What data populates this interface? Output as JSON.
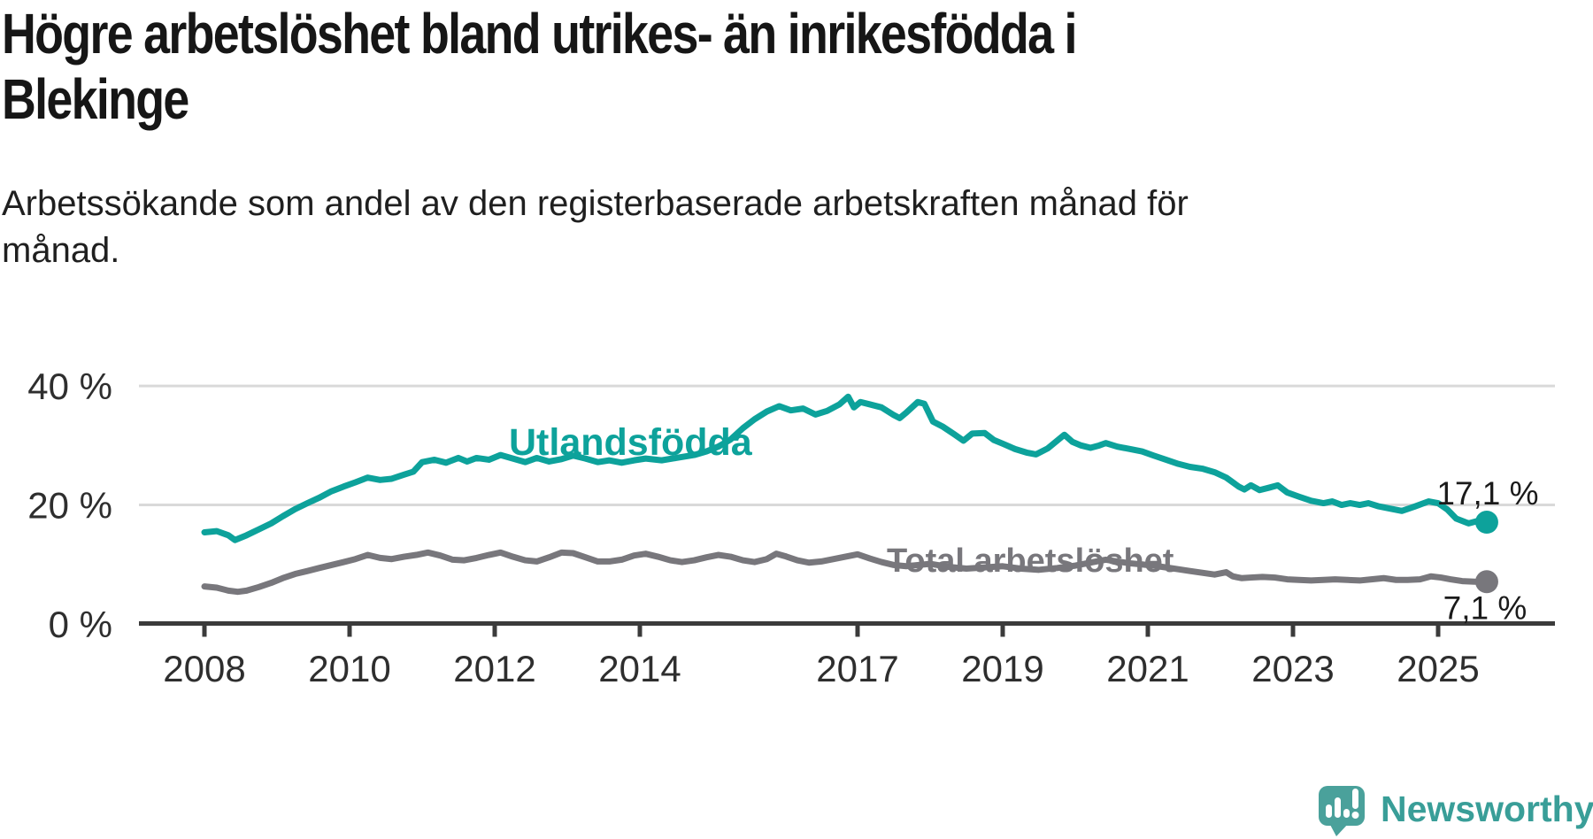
{
  "title": "Högre arbetslöshet bland utrikes- än inrikesfödda i Blekinge",
  "subtitle": "Arbetssökande som andel av den registerbaserade arbetskraften månad för månad.",
  "chart_data": {
    "type": "line",
    "title": "Högre arbetslöshet bland utrikes- än inrikesfödda i Blekinge",
    "xlabel": "",
    "ylabel": "",
    "unit": "%",
    "grid": "horizontal",
    "legend_position": "inline-annotations",
    "x_axis": {
      "range": [
        2008,
        2026
      ],
      "ticks": [
        2008,
        2010,
        2012,
        2014,
        2017,
        2019,
        2021,
        2023,
        2025
      ]
    },
    "y_axis": {
      "range": [
        0,
        42
      ],
      "ticks": [
        {
          "value": 0,
          "label": "0 %"
        },
        {
          "value": 20,
          "label": "20 %"
        },
        {
          "value": 40,
          "label": "40 %"
        }
      ]
    },
    "series": [
      {
        "name": "Utlandsfödda",
        "color": "#0da29b",
        "end_label": "17,1 %",
        "end_value": 17.1,
        "points": [
          [
            2008.0,
            15.4
          ],
          [
            2008.17,
            15.6
          ],
          [
            2008.33,
            14.9
          ],
          [
            2008.42,
            14.1
          ],
          [
            2008.58,
            14.9
          ],
          [
            2008.75,
            15.9
          ],
          [
            2008.92,
            16.9
          ],
          [
            2009.08,
            18.1
          ],
          [
            2009.25,
            19.3
          ],
          [
            2009.42,
            20.3
          ],
          [
            2009.58,
            21.2
          ],
          [
            2009.75,
            22.3
          ],
          [
            2009.92,
            23.1
          ],
          [
            2010.08,
            23.8
          ],
          [
            2010.25,
            24.6
          ],
          [
            2010.42,
            24.2
          ],
          [
            2010.58,
            24.4
          ],
          [
            2010.75,
            25.1
          ],
          [
            2010.88,
            25.6
          ],
          [
            2011.0,
            27.2
          ],
          [
            2011.17,
            27.6
          ],
          [
            2011.33,
            27.1
          ],
          [
            2011.5,
            27.9
          ],
          [
            2011.62,
            27.3
          ],
          [
            2011.75,
            27.9
          ],
          [
            2011.92,
            27.6
          ],
          [
            2012.08,
            28.4
          ],
          [
            2012.25,
            27.8
          ],
          [
            2012.42,
            27.2
          ],
          [
            2012.58,
            27.9
          ],
          [
            2012.75,
            27.3
          ],
          [
            2012.92,
            27.7
          ],
          [
            2013.08,
            28.3
          ],
          [
            2013.25,
            27.8
          ],
          [
            2013.42,
            27.2
          ],
          [
            2013.58,
            27.5
          ],
          [
            2013.75,
            27.1
          ],
          [
            2013.92,
            27.5
          ],
          [
            2014.08,
            27.8
          ],
          [
            2014.3,
            27.5
          ],
          [
            2014.5,
            27.9
          ],
          [
            2014.75,
            28.4
          ],
          [
            2014.92,
            29.0
          ],
          [
            2015.08,
            29.8
          ],
          [
            2015.25,
            31.0
          ],
          [
            2015.42,
            32.9
          ],
          [
            2015.58,
            34.4
          ],
          [
            2015.75,
            35.7
          ],
          [
            2015.92,
            36.6
          ],
          [
            2016.08,
            35.9
          ],
          [
            2016.25,
            36.2
          ],
          [
            2016.42,
            35.2
          ],
          [
            2016.58,
            35.8
          ],
          [
            2016.75,
            36.9
          ],
          [
            2016.87,
            38.2
          ],
          [
            2016.95,
            36.4
          ],
          [
            2017.04,
            37.3
          ],
          [
            2017.17,
            36.9
          ],
          [
            2017.33,
            36.4
          ],
          [
            2017.5,
            35.1
          ],
          [
            2017.58,
            34.6
          ],
          [
            2017.67,
            35.5
          ],
          [
            2017.83,
            37.3
          ],
          [
            2017.92,
            37.0
          ],
          [
            2018.04,
            34.0
          ],
          [
            2018.17,
            33.2
          ],
          [
            2018.33,
            31.9
          ],
          [
            2018.46,
            30.8
          ],
          [
            2018.58,
            32.0
          ],
          [
            2018.75,
            32.1
          ],
          [
            2018.88,
            30.9
          ],
          [
            2019.0,
            30.3
          ],
          [
            2019.17,
            29.4
          ],
          [
            2019.33,
            28.8
          ],
          [
            2019.46,
            28.5
          ],
          [
            2019.62,
            29.5
          ],
          [
            2019.75,
            30.8
          ],
          [
            2019.85,
            31.8
          ],
          [
            2019.96,
            30.6
          ],
          [
            2020.08,
            30.0
          ],
          [
            2020.21,
            29.6
          ],
          [
            2020.33,
            30.0
          ],
          [
            2020.42,
            30.4
          ],
          [
            2020.58,
            29.8
          ],
          [
            2020.75,
            29.4
          ],
          [
            2020.92,
            29.0
          ],
          [
            2021.08,
            28.3
          ],
          [
            2021.25,
            27.6
          ],
          [
            2021.42,
            26.9
          ],
          [
            2021.58,
            26.4
          ],
          [
            2021.75,
            26.1
          ],
          [
            2021.92,
            25.5
          ],
          [
            2022.08,
            24.6
          ],
          [
            2022.25,
            23.1
          ],
          [
            2022.33,
            22.6
          ],
          [
            2022.42,
            23.3
          ],
          [
            2022.54,
            22.5
          ],
          [
            2022.67,
            22.9
          ],
          [
            2022.79,
            23.3
          ],
          [
            2022.92,
            22.1
          ],
          [
            2023.08,
            21.4
          ],
          [
            2023.25,
            20.7
          ],
          [
            2023.42,
            20.3
          ],
          [
            2023.54,
            20.6
          ],
          [
            2023.67,
            20.0
          ],
          [
            2023.79,
            20.3
          ],
          [
            2023.92,
            20.0
          ],
          [
            2024.04,
            20.3
          ],
          [
            2024.17,
            19.8
          ],
          [
            2024.33,
            19.4
          ],
          [
            2024.5,
            19.0
          ],
          [
            2024.67,
            19.7
          ],
          [
            2024.87,
            20.6
          ],
          [
            2025.0,
            20.3
          ],
          [
            2025.13,
            19.2
          ],
          [
            2025.25,
            17.7
          ],
          [
            2025.42,
            16.9
          ],
          [
            2025.54,
            17.3
          ],
          [
            2025.67,
            17.1
          ]
        ]
      },
      {
        "name": "Total arbetslöshet",
        "color": "#78777c",
        "end_label": "7,1 %",
        "end_value": 7.1,
        "points": [
          [
            2008.0,
            6.3
          ],
          [
            2008.17,
            6.1
          ],
          [
            2008.33,
            5.6
          ],
          [
            2008.46,
            5.4
          ],
          [
            2008.58,
            5.6
          ],
          [
            2008.75,
            6.2
          ],
          [
            2008.92,
            6.9
          ],
          [
            2009.08,
            7.7
          ],
          [
            2009.25,
            8.4
          ],
          [
            2009.42,
            8.9
          ],
          [
            2009.58,
            9.4
          ],
          [
            2009.75,
            9.9
          ],
          [
            2009.92,
            10.4
          ],
          [
            2010.08,
            10.9
          ],
          [
            2010.25,
            11.6
          ],
          [
            2010.42,
            11.1
          ],
          [
            2010.58,
            10.9
          ],
          [
            2010.75,
            11.3
          ],
          [
            2010.92,
            11.6
          ],
          [
            2011.08,
            12.0
          ],
          [
            2011.25,
            11.5
          ],
          [
            2011.42,
            10.8
          ],
          [
            2011.58,
            10.7
          ],
          [
            2011.75,
            11.1
          ],
          [
            2011.92,
            11.6
          ],
          [
            2012.08,
            12.0
          ],
          [
            2012.25,
            11.3
          ],
          [
            2012.42,
            10.7
          ],
          [
            2012.58,
            10.5
          ],
          [
            2012.75,
            11.2
          ],
          [
            2012.92,
            12.0
          ],
          [
            2013.08,
            11.9
          ],
          [
            2013.25,
            11.2
          ],
          [
            2013.42,
            10.5
          ],
          [
            2013.58,
            10.5
          ],
          [
            2013.75,
            10.8
          ],
          [
            2013.92,
            11.5
          ],
          [
            2014.08,
            11.8
          ],
          [
            2014.25,
            11.3
          ],
          [
            2014.42,
            10.7
          ],
          [
            2014.58,
            10.4
          ],
          [
            2014.75,
            10.7
          ],
          [
            2014.92,
            11.2
          ],
          [
            2015.08,
            11.6
          ],
          [
            2015.25,
            11.3
          ],
          [
            2015.42,
            10.7
          ],
          [
            2015.58,
            10.4
          ],
          [
            2015.75,
            10.9
          ],
          [
            2015.88,
            11.8
          ],
          [
            2016.0,
            11.4
          ],
          [
            2016.17,
            10.7
          ],
          [
            2016.33,
            10.3
          ],
          [
            2016.5,
            10.5
          ],
          [
            2016.67,
            10.9
          ],
          [
            2016.83,
            11.3
          ],
          [
            2017.0,
            11.7
          ],
          [
            2017.17,
            11.0
          ],
          [
            2017.33,
            10.4
          ],
          [
            2017.5,
            9.9
          ],
          [
            2017.67,
            9.7
          ],
          [
            2017.83,
            9.9
          ],
          [
            2018.0,
            10.1
          ],
          [
            2018.25,
            9.6
          ],
          [
            2018.5,
            9.3
          ],
          [
            2018.75,
            9.5
          ],
          [
            2019.0,
            9.7
          ],
          [
            2019.25,
            9.3
          ],
          [
            2019.5,
            9.1
          ],
          [
            2019.75,
            9.4
          ],
          [
            2020.0,
            9.8
          ],
          [
            2020.25,
            10.4
          ],
          [
            2020.42,
            10.8
          ],
          [
            2020.58,
            10.5
          ],
          [
            2020.75,
            10.2
          ],
          [
            2020.92,
            10.0
          ],
          [
            2021.08,
            9.8
          ],
          [
            2021.25,
            9.5
          ],
          [
            2021.42,
            9.2
          ],
          [
            2021.58,
            8.9
          ],
          [
            2021.75,
            8.6
          ],
          [
            2021.92,
            8.3
          ],
          [
            2022.08,
            8.7
          ],
          [
            2022.17,
            8.0
          ],
          [
            2022.29,
            7.7
          ],
          [
            2022.42,
            7.8
          ],
          [
            2022.58,
            7.9
          ],
          [
            2022.75,
            7.8
          ],
          [
            2022.92,
            7.5
          ],
          [
            2023.08,
            7.4
          ],
          [
            2023.25,
            7.3
          ],
          [
            2023.42,
            7.4
          ],
          [
            2023.58,
            7.5
          ],
          [
            2023.75,
            7.4
          ],
          [
            2023.92,
            7.3
          ],
          [
            2024.08,
            7.5
          ],
          [
            2024.25,
            7.7
          ],
          [
            2024.42,
            7.4
          ],
          [
            2024.58,
            7.4
          ],
          [
            2024.75,
            7.5
          ],
          [
            2024.9,
            8.0
          ],
          [
            2025.04,
            7.8
          ],
          [
            2025.17,
            7.5
          ],
          [
            2025.33,
            7.2
          ],
          [
            2025.5,
            7.1
          ],
          [
            2025.67,
            7.1
          ]
        ]
      }
    ],
    "colors": {
      "gridline": "#d9d9d9",
      "axis": "#3b3b3b",
      "tick_label": "#2e2e2e",
      "end_label_text": "#1a1a1a"
    }
  },
  "branding": {
    "logo_text": "Newsworthy",
    "logo_color": "#4aa19b",
    "logo_text_color": "#399e98",
    "logo_icon": "speech-bubble-bar-chart-exclamation"
  }
}
